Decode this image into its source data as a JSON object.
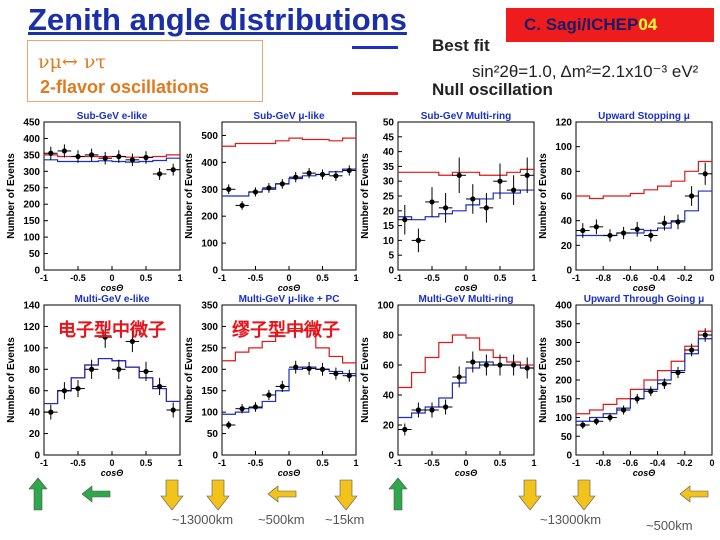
{
  "slide": {
    "title": "Zenith angle distributions",
    "credit_prefix": "C. Sagi",
    "credit_slash": "/",
    "credit_conf": "ICHEP",
    "credit_year": "04"
  },
  "oscillation_box": {
    "line1": "νμ↔ ντ",
    "line2": "2-flavor oscillations"
  },
  "legend": {
    "best_fit": "Best fit",
    "best_fit_params": "sin²2θ=1.0, Δm²=2.1x10⁻³ eV²",
    "null": "Null oscillation",
    "best_fit_color": "#1a2fc8",
    "null_color": "#e01818"
  },
  "annotations": {
    "electron_like": "电子型中微子",
    "muon_like": "缪子型中微子"
  },
  "distances": {
    "d1": "~13000km",
    "d2": "~500km",
    "d3": "~15km",
    "d4": "~13000km",
    "d5": "~500km"
  },
  "arrow_icons": [
    "arrow-up-icon",
    "arrow-left-icon",
    "arrow-down-icon",
    "arrow-down-icon",
    "arrow-left-icon",
    "arrow-down-icon",
    "arrow-up-icon",
    "arrow-down-icon",
    "arrow-down-icon",
    "arrow-left-icon"
  ],
  "arrow_colors": {
    "green": "#2ea84a",
    "yellow": "#f2c21d"
  },
  "chart_data": [
    {
      "type": "line",
      "title": "Sub-GeV e-like",
      "xlabel": "cosΘ",
      "ylabel": "Number of Events",
      "xlim": [
        -1,
        1
      ],
      "ylim": [
        0,
        450
      ],
      "xticks": [
        -1,
        -0.5,
        0,
        0.5,
        1
      ],
      "xtick_labels": [
        "-1",
        "-0.5",
        "0",
        "0.5",
        "1"
      ],
      "yticks": [
        0,
        50,
        100,
        150,
        200,
        250,
        300,
        350,
        400,
        450
      ],
      "x": [
        -0.9,
        -0.7,
        -0.5,
        -0.3,
        -0.1,
        0.1,
        0.3,
        0.5,
        0.7,
        0.9
      ],
      "series": [
        {
          "name": "Data",
          "values": [
            355,
            362,
            345,
            350,
            340,
            345,
            335,
            342,
            292,
            305
          ],
          "errors": [
            20,
            20,
            19,
            19,
            19,
            19,
            19,
            19,
            18,
            18
          ]
        },
        {
          "name": "Best fit",
          "values": [
            335,
            330,
            330,
            330,
            332,
            330,
            328,
            330,
            333,
            340
          ]
        },
        {
          "name": "Null oscillation",
          "values": [
            350,
            345,
            345,
            345,
            345,
            345,
            343,
            343,
            345,
            350
          ]
        }
      ]
    },
    {
      "type": "line",
      "title": "Sub-GeV μ-like",
      "xlabel": "cosΘ",
      "ylabel": "Number of Events",
      "xlim": [
        -1,
        1
      ],
      "ylim": [
        0,
        550
      ],
      "xticks": [
        -1,
        -0.5,
        0,
        0.5,
        1
      ],
      "xtick_labels": [
        "-1",
        "-0.5",
        "0",
        "0.5",
        "1"
      ],
      "yticks": [
        0,
        100,
        200,
        300,
        400,
        500
      ],
      "x": [
        -0.9,
        -0.7,
        -0.5,
        -0.3,
        -0.1,
        0.1,
        0.3,
        0.5,
        0.7,
        0.9
      ],
      "series": [
        {
          "name": "Data",
          "values": [
            300,
            240,
            290,
            305,
            320,
            345,
            360,
            355,
            350,
            370
          ],
          "errors": [
            18,
            16,
            17,
            18,
            18,
            19,
            19,
            19,
            19,
            19
          ]
        },
        {
          "name": "Best fit",
          "values": [
            275,
            275,
            290,
            300,
            320,
            340,
            350,
            355,
            365,
            375
          ]
        },
        {
          "name": "Null oscillation",
          "values": [
            460,
            470,
            470,
            470,
            480,
            490,
            485,
            485,
            480,
            490
          ]
        }
      ]
    },
    {
      "type": "line",
      "title": "Sub-GeV Multi-ring",
      "xlabel": "cosΘ",
      "ylabel": "Number of Events",
      "xlim": [
        -1,
        1
      ],
      "ylim": [
        0,
        50
      ],
      "xticks": [
        -1,
        -0.5,
        0,
        0.5,
        1
      ],
      "xtick_labels": [
        "-1",
        "-0.5",
        "0",
        "0.5",
        "1"
      ],
      "yticks": [
        0,
        5,
        10,
        15,
        20,
        25,
        30,
        35,
        40,
        45,
        50
      ],
      "x": [
        -0.9,
        -0.7,
        -0.5,
        -0.3,
        -0.1,
        0.1,
        0.3,
        0.5,
        0.7,
        0.9
      ],
      "series": [
        {
          "name": "Data",
          "values": [
            17,
            10,
            23,
            21,
            32,
            24,
            21,
            30,
            27,
            32
          ],
          "errors": [
            5,
            4,
            5,
            5,
            6,
            5,
            5,
            6,
            5,
            6
          ]
        },
        {
          "name": "Best fit",
          "values": [
            18,
            17,
            18,
            19,
            20,
            22,
            24,
            26,
            26,
            27
          ]
        },
        {
          "name": "Null oscillation",
          "values": [
            33,
            33,
            33,
            32,
            33,
            33,
            32,
            32,
            33,
            34
          ]
        }
      ]
    },
    {
      "type": "line",
      "title": "Upward Stopping μ",
      "xlabel": "cosΘ",
      "ylabel": "Number of Events",
      "xlim": [
        -1,
        0
      ],
      "ylim": [
        0,
        120
      ],
      "xticks": [
        -1,
        -0.8,
        -0.6,
        -0.4,
        -0.2,
        0
      ],
      "xtick_labels": [
        "-1",
        "-0.8",
        "-0.6",
        "-0.4",
        "-0.2",
        "0"
      ],
      "yticks": [
        0,
        20,
        40,
        60,
        80,
        100,
        120
      ],
      "x": [
        -0.95,
        -0.85,
        -0.75,
        -0.65,
        -0.55,
        -0.45,
        -0.35,
        -0.25,
        -0.15,
        -0.05
      ],
      "series": [
        {
          "name": "Data",
          "values": [
            32,
            35,
            28,
            30,
            33,
            28,
            38,
            39,
            60,
            78
          ],
          "errors": [
            6,
            6,
            5,
            5,
            6,
            5,
            6,
            6,
            8,
            9
          ]
        },
        {
          "name": "Best fit",
          "values": [
            28,
            28,
            28,
            30,
            30,
            32,
            34,
            40,
            48,
            64
          ]
        },
        {
          "name": "Null oscillation",
          "values": [
            60,
            58,
            60,
            60,
            62,
            65,
            68,
            72,
            80,
            88
          ]
        }
      ]
    },
    {
      "type": "line",
      "title": "Multi-GeV e-like",
      "xlabel": "cosΘ",
      "ylabel": "Number of Events",
      "xlim": [
        -1,
        1
      ],
      "ylim": [
        0,
        140
      ],
      "xticks": [
        -1,
        -0.5,
        0,
        0.5,
        1
      ],
      "xtick_labels": [
        "-1",
        "-0.5",
        "0",
        "0.5",
        "1"
      ],
      "yticks": [
        0,
        20,
        40,
        60,
        80,
        100,
        120,
        140
      ],
      "x": [
        -0.9,
        -0.7,
        -0.5,
        -0.3,
        -0.1,
        0.1,
        0.3,
        0.5,
        0.7,
        0.9
      ],
      "series": [
        {
          "name": "Data",
          "values": [
            40,
            60,
            62,
            80,
            110,
            80,
            106,
            78,
            64,
            42
          ],
          "errors": [
            7,
            8,
            8,
            9,
            10,
            9,
            10,
            9,
            8,
            7
          ]
        },
        {
          "name": "Best fit",
          "values": [
            48,
            60,
            72,
            84,
            90,
            88,
            82,
            72,
            62,
            50
          ]
        },
        {
          "name": "Null oscillation",
          "values": [
            48,
            60,
            72,
            84,
            90,
            88,
            82,
            72,
            62,
            50
          ]
        }
      ]
    },
    {
      "type": "line",
      "title": "Multi-GeV μ-like + PC",
      "xlabel": "cosΘ",
      "ylabel": "Number of Events",
      "xlim": [
        -1,
        1
      ],
      "ylim": [
        0,
        350
      ],
      "xticks": [
        -1,
        -0.5,
        0,
        0.5,
        1
      ],
      "xtick_labels": [
        "-1",
        "-0.5",
        "0",
        "0.5",
        "1"
      ],
      "yticks": [
        0,
        50,
        100,
        150,
        200,
        250,
        300,
        350
      ],
      "x": [
        -0.9,
        -0.7,
        -0.5,
        -0.3,
        -0.1,
        0.1,
        0.3,
        0.5,
        0.7,
        0.9
      ],
      "series": [
        {
          "name": "Data",
          "values": [
            70,
            108,
            112,
            140,
            160,
            205,
            202,
            200,
            190,
            185
          ],
          "errors": [
            9,
            11,
            11,
            12,
            13,
            15,
            15,
            15,
            14,
            14
          ]
        },
        {
          "name": "Best fit",
          "values": [
            95,
            100,
            110,
            125,
            150,
            200,
            205,
            200,
            195,
            190
          ]
        },
        {
          "name": "Null oscillation",
          "values": [
            220,
            240,
            250,
            265,
            285,
            295,
            290,
            250,
            230,
            215
          ]
        }
      ]
    },
    {
      "type": "line",
      "title": "Multi-GeV Multi-ring",
      "xlabel": "cosΘ",
      "ylabel": "Number of Events",
      "xlim": [
        -1,
        1
      ],
      "ylim": [
        0,
        100
      ],
      "xticks": [
        -1,
        -0.5,
        0,
        0.5,
        1
      ],
      "xtick_labels": [
        "-1",
        "-0.5",
        "0",
        "0.5",
        "1"
      ],
      "yticks": [
        0,
        20,
        40,
        60,
        80,
        100
      ],
      "x": [
        -0.9,
        -0.7,
        -0.5,
        -0.3,
        -0.1,
        0.1,
        0.3,
        0.5,
        0.7,
        0.9
      ],
      "series": [
        {
          "name": "Data",
          "values": [
            17,
            30,
            30,
            32,
            52,
            62,
            60,
            60,
            60,
            58
          ],
          "errors": [
            4,
            5,
            5,
            5,
            7,
            7,
            7,
            7,
            7,
            7
          ]
        },
        {
          "name": "Best fit",
          "values": [
            25,
            28,
            32,
            38,
            48,
            58,
            62,
            60,
            60,
            58
          ]
        },
        {
          "name": "Null oscillation",
          "values": [
            45,
            55,
            65,
            75,
            80,
            78,
            70,
            65,
            62,
            60
          ]
        }
      ]
    },
    {
      "type": "line",
      "title": "Upward Through Going μ",
      "xlabel": "cosΘ",
      "ylabel": "Number of Events",
      "xlim": [
        -1,
        0
      ],
      "ylim": [
        0,
        400
      ],
      "xticks": [
        -1,
        -0.8,
        -0.6,
        -0.4,
        -0.2,
        0
      ],
      "xtick_labels": [
        "-1",
        "-0.8",
        "-0.6",
        "-0.4",
        "-0.2",
        "0"
      ],
      "yticks": [
        0,
        50,
        100,
        150,
        200,
        250,
        300,
        350,
        400
      ],
      "x": [
        -0.95,
        -0.85,
        -0.75,
        -0.65,
        -0.55,
        -0.45,
        -0.35,
        -0.25,
        -0.15,
        -0.05
      ],
      "series": [
        {
          "name": "Data",
          "values": [
            80,
            90,
            100,
            120,
            150,
            170,
            190,
            220,
            280,
            320
          ],
          "errors": [
            10,
            10,
            11,
            12,
            13,
            13,
            14,
            15,
            17,
            18
          ]
        },
        {
          "name": "Best fit",
          "values": [
            90,
            100,
            110,
            125,
            150,
            175,
            200,
            225,
            270,
            310
          ]
        },
        {
          "name": "Null oscillation",
          "values": [
            110,
            120,
            135,
            150,
            175,
            200,
            225,
            250,
            290,
            330
          ]
        }
      ]
    }
  ]
}
